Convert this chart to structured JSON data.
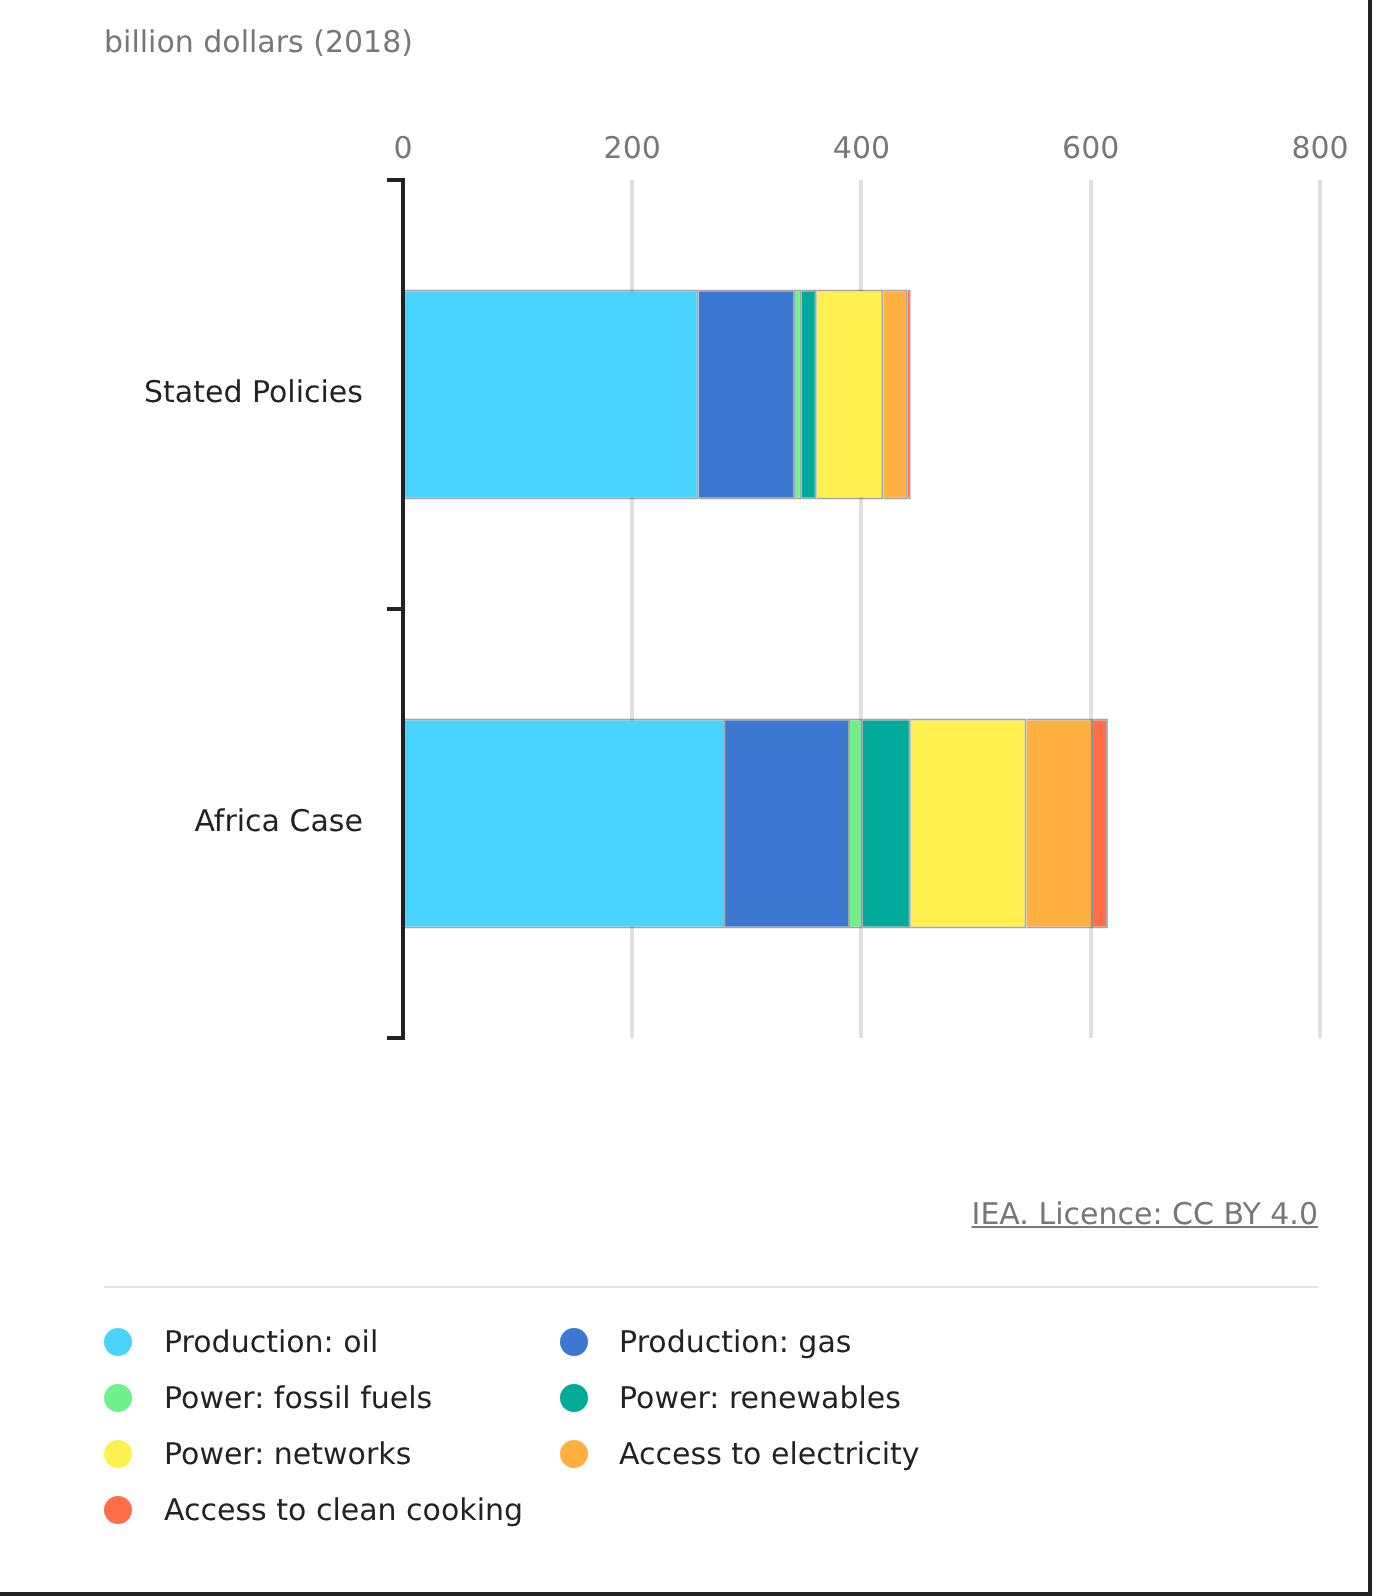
{
  "chart_data": {
    "type": "bar",
    "orientation": "horizontal",
    "stacked": true,
    "subtitle": "billion dollars (2018)",
    "categories": [
      "Stated Policies",
      "Africa Case"
    ],
    "series": [
      {
        "name": "Production: oil",
        "color": "#48d4ff",
        "values": [
          258,
          281
        ]
      },
      {
        "name": "Production: gas",
        "color": "#3c78d2",
        "values": [
          84,
          109
        ]
      },
      {
        "name": "Power: fossil fuels",
        "color": "#6ff08c",
        "values": [
          6,
          11
        ]
      },
      {
        "name": "Power: renewables",
        "color": "#00aa9a",
        "values": [
          13,
          42
        ]
      },
      {
        "name": "Power: networks",
        "color": "#fff050",
        "values": [
          58,
          101
        ]
      },
      {
        "name": "Access to electricity",
        "color": "#ffb040",
        "values": [
          21,
          58
        ]
      },
      {
        "name": "Access to clean cooking",
        "color": "#ff6e46",
        "values": [
          3,
          13
        ]
      }
    ],
    "xlim": [
      0,
      800
    ],
    "xticks": [
      0,
      200,
      400,
      600,
      800
    ],
    "grid": "x",
    "legend": "bottom",
    "annotations": [
      "IEA. Licence: CC BY 4.0"
    ]
  }
}
